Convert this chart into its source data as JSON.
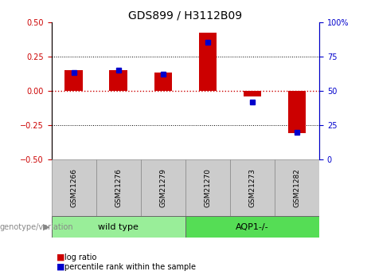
{
  "title": "GDS899 / H3112B09",
  "samples": [
    "GSM21266",
    "GSM21276",
    "GSM21279",
    "GSM21270",
    "GSM21273",
    "GSM21282"
  ],
  "log_ratio": [
    0.15,
    0.15,
    0.13,
    0.42,
    -0.04,
    -0.31
  ],
  "percentile_rank": [
    63,
    65,
    62,
    85,
    42,
    20
  ],
  "groups": [
    {
      "label": "wild type",
      "start": 0,
      "end": 3,
      "color": "#99ee99"
    },
    {
      "label": "AQP1-/-",
      "start": 3,
      "end": 6,
      "color": "#55dd55"
    }
  ],
  "left_ylim": [
    -0.5,
    0.5
  ],
  "right_ylim": [
    0,
    100
  ],
  "log_ratio_color": "#cc0000",
  "percentile_color": "#0000cc",
  "zero_line_color": "#cc0000",
  "grid_color": "#000000",
  "grid_yticks": [
    -0.25,
    0.25
  ],
  "right_yticks": [
    0,
    25,
    50,
    75,
    100
  ],
  "left_yticks": [
    -0.5,
    -0.25,
    0,
    0.25,
    0.5
  ],
  "group_label": "genotype/variation",
  "legend_log_ratio": "log ratio",
  "legend_percentile": "percentile rank within the sample",
  "background_color": "#ffffff",
  "label_area_color": "#cccccc",
  "right_tick_color": "#0000cc",
  "left_tick_color": "#cc0000"
}
